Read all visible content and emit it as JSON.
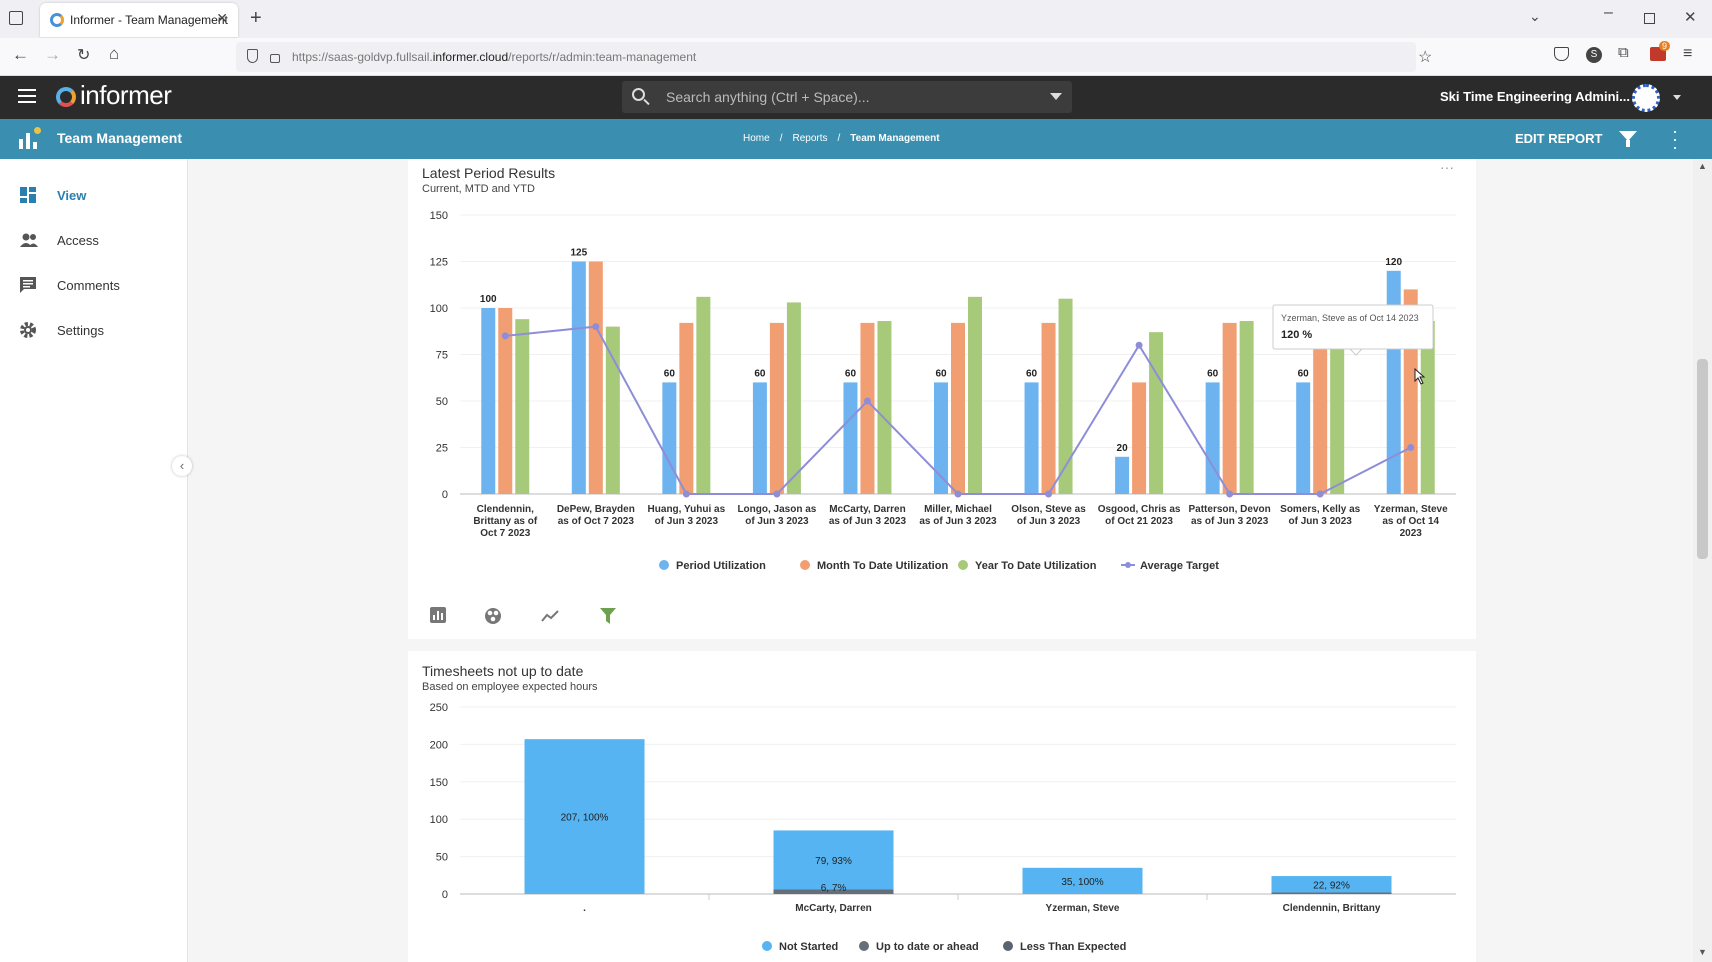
{
  "browser": {
    "tab_title": "Informer - Team Management",
    "url_prefix": "https://saas-goldvp.fullsail.",
    "url_domain": "informer.cloud",
    "url_path": "/reports/r/admin:team-management",
    "extension_badge": "9"
  },
  "app": {
    "logo_text": "informer",
    "search_placeholder": "Search anything (Ctrl + Space)...",
    "user_name": "Ski Time Engineering Admini..."
  },
  "subheader": {
    "title": "Team Management",
    "breadcrumb": [
      "Home",
      "Reports",
      "Team Management"
    ],
    "edit_label": "EDIT REPORT"
  },
  "sidebar": {
    "items": [
      {
        "label": "View",
        "icon": "dashboard-icon"
      },
      {
        "label": "Access",
        "icon": "people-icon"
      },
      {
        "label": "Comments",
        "icon": "comment-icon"
      },
      {
        "label": "Settings",
        "icon": "gear-icon"
      }
    ]
  },
  "colors": {
    "period": "#6cb3ef",
    "mtd": "#f29e73",
    "ytd": "#a7c97a",
    "target": "#8e8ed8",
    "notstarted": "#56b4f2",
    "uptodate": "#666e7a",
    "less": "#5a6470"
  },
  "chart_data": [
    {
      "type": "bar",
      "title": "Latest Period Results",
      "subtitle": "Current, MTD and YTD",
      "ylim": [
        0,
        150
      ],
      "yticks": [
        0,
        25,
        50,
        75,
        100,
        125,
        150
      ],
      "categories": [
        "Clendennin, Brittany as of Oct 7 2023",
        "DePew, Brayden as of Oct 7 2023",
        "Huang, Yuhui as of Jun 3 2023",
        "Longo, Jason as of Jun 3 2023",
        "McCarty, Darren as of Jun 3 2023",
        "Miller, Michael as of Jun 3 2023",
        "Olson, Steve as of Jun 3 2023",
        "Osgood, Chris as of Oct 21 2023",
        "Patterson, Devon as of Jun 3 2023",
        "Somers, Kelly as of Jun 3 2023",
        "Yzerman, Steve as of Oct 14 2023"
      ],
      "category_lines": [
        [
          "Clendennin,",
          "Brittany as of",
          "Oct 7 2023"
        ],
        [
          "DePew, Brayden",
          "as of Oct 7 2023"
        ],
        [
          "Huang, Yuhui as",
          "of Jun 3 2023"
        ],
        [
          "Longo, Jason as",
          "of Jun 3 2023"
        ],
        [
          "McCarty, Darren",
          "as of Jun 3 2023"
        ],
        [
          "Miller, Michael",
          "as of Jun 3 2023"
        ],
        [
          "Olson, Steve as",
          "of Jun 3 2023"
        ],
        [
          "Osgood, Chris as",
          "of Oct 21 2023"
        ],
        [
          "Patterson, Devon",
          "as of Jun 3 2023"
        ],
        [
          "Somers, Kelly as",
          "of Jun 3 2023"
        ],
        [
          "Yzerman, Steve",
          "as of Oct 14",
          "2023"
        ]
      ],
      "series": [
        {
          "name": "Period Utilization",
          "kind": "bar",
          "values": [
            100,
            125,
            60,
            60,
            60,
            60,
            60,
            20,
            60,
            60,
            120
          ],
          "labels": [
            "100",
            "125",
            "60",
            "60",
            "60",
            "60",
            "60",
            "20",
            "60",
            "60",
            "120"
          ]
        },
        {
          "name": "Month To Date Utilization",
          "kind": "bar",
          "values": [
            100,
            125,
            92,
            92,
            92,
            92,
            92,
            60,
            92,
            92,
            110
          ]
        },
        {
          "name": "Year To Date Utilization",
          "kind": "bar",
          "values": [
            94,
            90,
            106,
            103,
            93,
            106,
            105,
            87,
            93,
            92,
            93
          ]
        },
        {
          "name": "Average Target",
          "kind": "line",
          "values": [
            85,
            90,
            0,
            0,
            50,
            0,
            0,
            80,
            0,
            0,
            25
          ]
        }
      ],
      "tooltip": {
        "line1": "Yzerman, Steve as of Oct 14 2023",
        "line2": "120 %"
      }
    },
    {
      "type": "bar",
      "title": "Timesheets not up to date",
      "subtitle": "Based on employee expected hours",
      "ylim": [
        0,
        250
      ],
      "yticks": [
        0,
        50,
        100,
        150,
        200,
        250
      ],
      "categories": [
        ".",
        "McCarty, Darren",
        "Yzerman, Steve",
        "Clendennin, Brittany"
      ],
      "series": [
        {
          "name": "Not Started",
          "values": [
            207,
            79,
            35,
            22
          ],
          "labels": [
            "207, 100%",
            "79, 93%",
            "35, 100%",
            "22, 92%"
          ]
        },
        {
          "name": "Up to date or ahead",
          "values": [
            0,
            6,
            0,
            2
          ],
          "labels": [
            "",
            "6, 7%",
            "",
            ""
          ]
        },
        {
          "name": "Less Than Expected",
          "values": [
            0,
            0,
            0,
            0
          ]
        }
      ]
    }
  ]
}
